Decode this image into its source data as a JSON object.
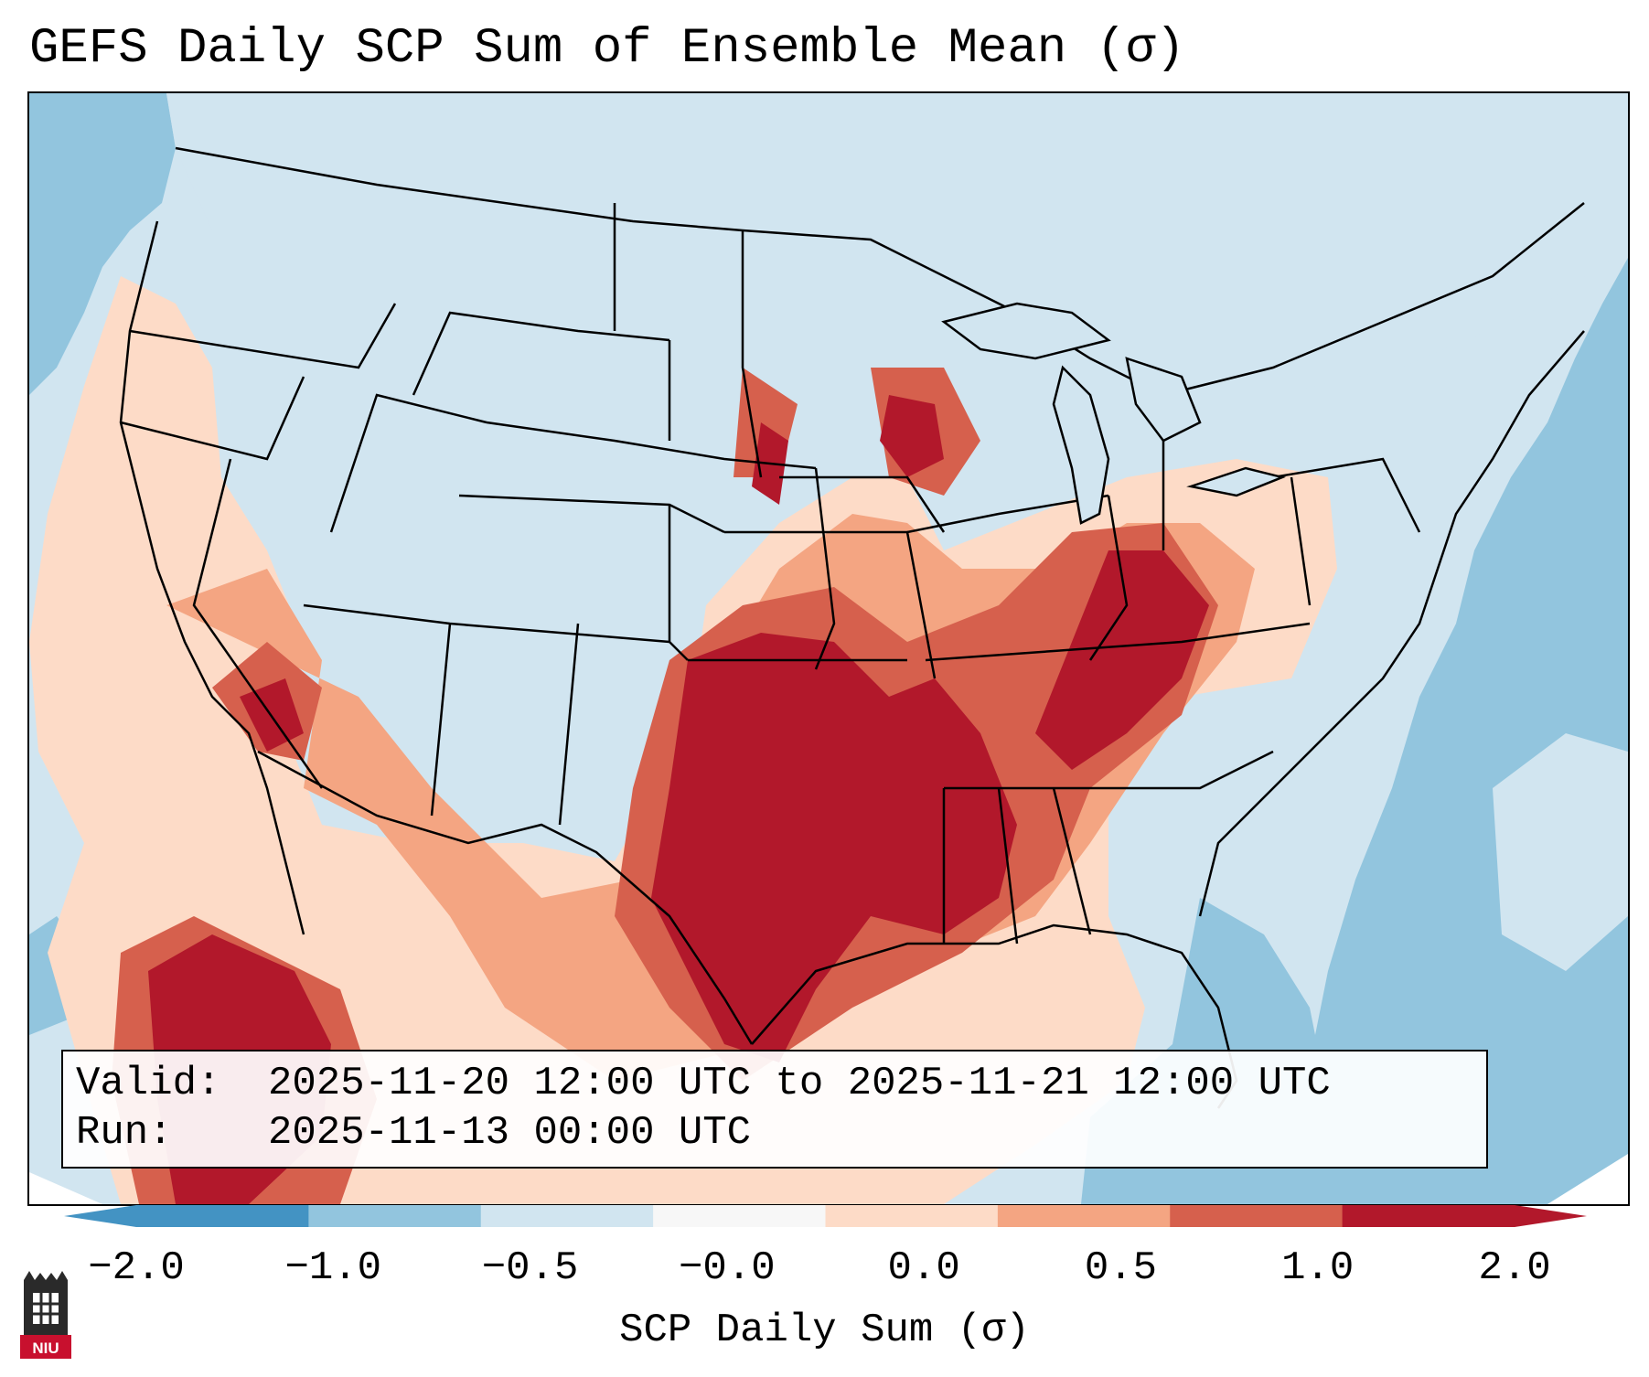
{
  "title": "GEFS Daily SCP Sum of Ensemble Mean (σ)",
  "info": {
    "valid_label": "Valid:",
    "valid_value": "2025-11-20 12:00 UTC to 2025-11-21 12:00 UTC",
    "run_label": "Run:",
    "run_value": "2025-11-13 00:00 UTC"
  },
  "colorbar": {
    "label": "SCP Daily Sum (σ)",
    "ticks": [
      "−2.0",
      "−1.0",
      "−0.5",
      "−0.0",
      "0.0",
      "0.5",
      "1.0",
      "2.0"
    ],
    "colors": [
      "#4393c3",
      "#92c5de",
      "#d1e5f0",
      "#f7f7f7",
      "#fddbc7",
      "#f4a582",
      "#d6604d",
      "#b2182b"
    ]
  },
  "map": {
    "region": "Contiguous United States",
    "colors": {
      "ocean": "#92c5de",
      "land_neutral": "#d1e5f0",
      "light_positive": "#fddbc7",
      "medium_positive": "#f4a582",
      "strong_positive": "#d6604d",
      "max_positive": "#b2182b",
      "border": "#000000"
    }
  },
  "logo": {
    "text": "NIU",
    "colors": {
      "tower": "#2a2a2a",
      "band": "#c8102e"
    }
  }
}
